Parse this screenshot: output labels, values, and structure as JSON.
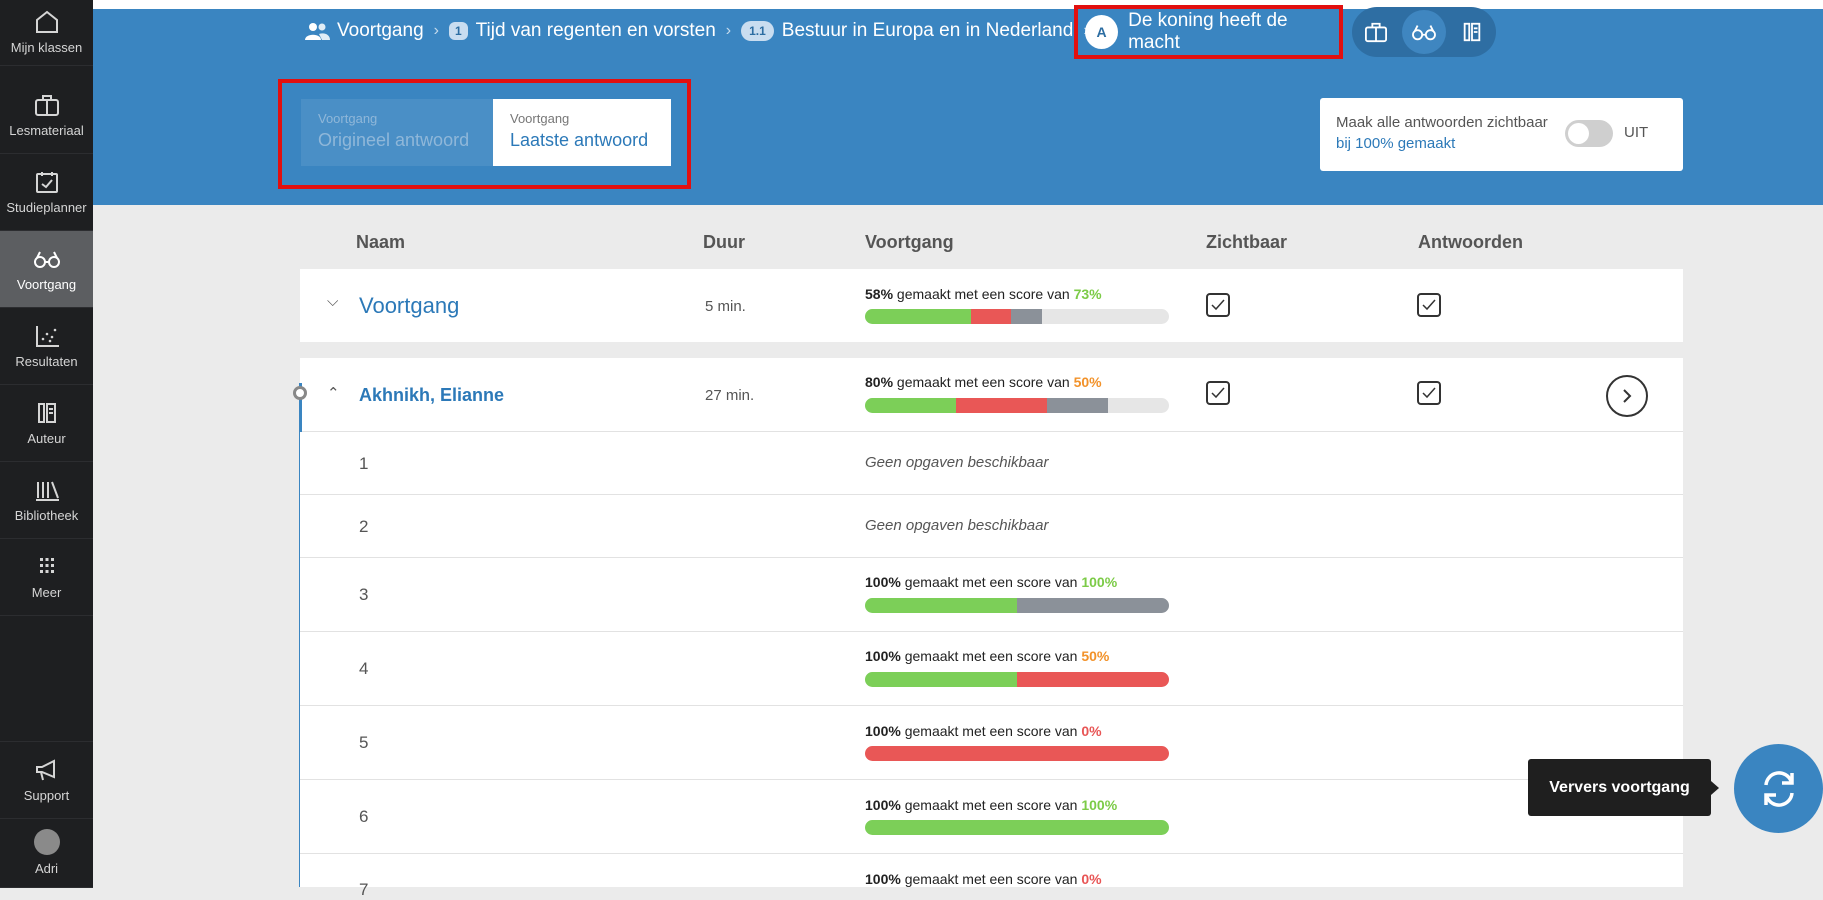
{
  "sidebar": {
    "items": [
      {
        "label": "Mijn klassen",
        "icon": "home-icon"
      },
      {
        "label": "Lesmateriaal",
        "icon": "briefcase-icon"
      },
      {
        "label": "Studieplanner",
        "icon": "calendar-check-icon"
      },
      {
        "label": "Voortgang",
        "icon": "glasses-icon",
        "active": true
      },
      {
        "label": "Resultaten",
        "icon": "scatter-chart-icon"
      },
      {
        "label": "Auteur",
        "icon": "author-icon"
      },
      {
        "label": "Bibliotheek",
        "icon": "library-icon"
      },
      {
        "label": "Meer",
        "icon": "grid-icon"
      }
    ],
    "support_label": "Support",
    "user_label": "Adri"
  },
  "breadcrumb": {
    "root": "Voortgang",
    "level1_badge": "1",
    "level1": "Tijd van regenten en vorsten",
    "level2_badge": "1.1",
    "level2": "Bestuur in Europa en in Nederland",
    "current_badge": "A",
    "current": "De koning heeft de macht"
  },
  "answer_toggle": {
    "original_small": "Voortgang",
    "original_big": "Origineel antwoord",
    "latest_small": "Voortgang",
    "latest_big": "Laatste antwoord"
  },
  "visibility": {
    "line1": "Maak alle antwoorden zichtbaar",
    "line2": "bij 100% gemaakt",
    "switch_state": "UIT"
  },
  "table": {
    "headers": {
      "name": "Naam",
      "duration": "Duur",
      "progress": "Voortgang",
      "visible": "Zichtbaar",
      "answers": "Antwoorden"
    },
    "progress_text": "gemaakt met een score van",
    "summary": {
      "name": "Voortgang",
      "duration": "5 min.",
      "made": "58%",
      "score": "73%",
      "bar": {
        "green": 0.35,
        "red": 0.13,
        "gray": 0.1
      }
    },
    "student": {
      "name": "Akhnikh, Elianne",
      "duration": "27 min.",
      "made": "80%",
      "score": "50%",
      "bar": {
        "green": 0.3,
        "red": 0.3,
        "gray": 0.2
      }
    },
    "no_questions": "Geen opgaven beschikbaar",
    "items": [
      {
        "num": "1"
      },
      {
        "num": "2"
      },
      {
        "num": "3",
        "made": "100%",
        "score": "100%"
      },
      {
        "num": "4",
        "made": "100%",
        "score": "50%"
      },
      {
        "num": "5",
        "made": "100%",
        "score": "0%"
      },
      {
        "num": "6",
        "made": "100%",
        "score": "100%"
      },
      {
        "num": "7",
        "made": "100%",
        "score": "0%"
      }
    ]
  },
  "tooltip": "Ververs voortgang",
  "colors": {
    "brand": "#3a85c1",
    "highlight": "#e20f0f",
    "green": "#7ccf58",
    "red": "#e95756",
    "gray": "#8b9199"
  }
}
